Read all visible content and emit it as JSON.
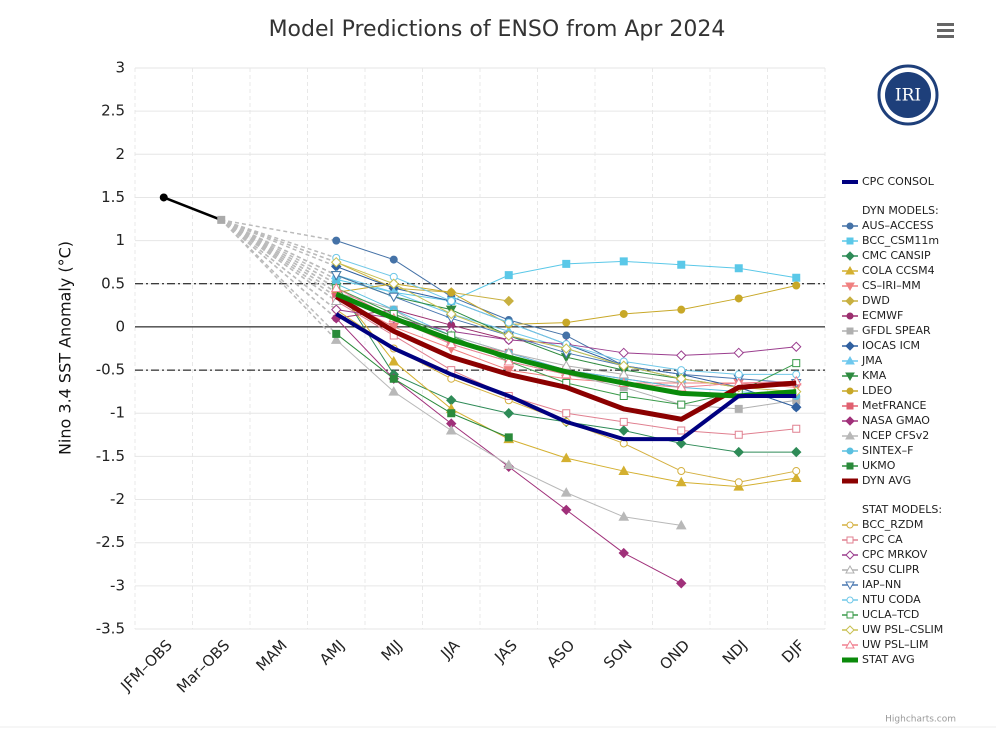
{
  "chart_data": {
    "type": "line",
    "title": "Model Predictions of ENSO from Apr 2024",
    "y_axis_title": "Nino 3.4 SST Anomaly (°C)",
    "credit": "Highcharts.com",
    "logo_text": "IRI",
    "categories": [
      "JFM–OBS",
      "Mar–OBS",
      "MAM",
      "AMJ",
      "MJJ",
      "JJA",
      "JAS",
      "ASO",
      "SON",
      "OND",
      "NDJ",
      "DJF"
    ],
    "ylim": [
      -3.5,
      3
    ],
    "yticks": [
      3,
      2.5,
      2,
      1.5,
      1,
      0.5,
      0,
      -0.5,
      -1,
      -1.5,
      -2,
      -2.5,
      -3,
      -3.5
    ],
    "grid": true,
    "plot_lines": [
      {
        "value": 0.5,
        "dash": "dashdot"
      },
      {
        "value": 0,
        "dash": "solid"
      },
      {
        "value": -0.5,
        "dash": "dashdot"
      }
    ],
    "observed": {
      "color": "#000000",
      "values": [
        1.5,
        1.24,
        null,
        null,
        null,
        null,
        null,
        null,
        null,
        null,
        null,
        null
      ]
    },
    "series": [
      {
        "name": "CPC CONSOL",
        "color": "#000080",
        "line_width": 4,
        "values": [
          null,
          null,
          null,
          0.15,
          -0.25,
          -0.55,
          -0.8,
          -1.1,
          -1.3,
          -1.3,
          -0.8,
          -0.8
        ]
      }
    ],
    "dyn_models": {
      "heading": "DYN MODELS:",
      "series": [
        {
          "name": "AUS–ACCESS",
          "color": "#4572a7",
          "marker": "circle",
          "values": [
            null,
            null,
            null,
            1.0,
            0.78,
            0.35,
            0.08,
            -0.1,
            -0.45,
            -0.6,
            -0.7,
            -0.93
          ]
        },
        {
          "name": "BCC_CSM11m",
          "color": "#5bc8e8",
          "marker": "square",
          "values": [
            null,
            null,
            null,
            0.55,
            0.4,
            0.3,
            0.6,
            0.73,
            0.76,
            0.72,
            0.68,
            0.57
          ]
        },
        {
          "name": "CMC CANSIP",
          "color": "#2e8b57",
          "marker": "diamond",
          "values": [
            null,
            null,
            null,
            0.5,
            -0.55,
            -0.85,
            -1.0,
            -1.1,
            -1.2,
            -1.35,
            -1.45,
            -1.45
          ]
        },
        {
          "name": "COLA CCSM4",
          "color": "#d4b030",
          "marker": "triangle",
          "values": [
            null,
            null,
            null,
            0.45,
            -0.4,
            -0.95,
            -1.3,
            -1.52,
            -1.67,
            -1.8,
            -1.85,
            -1.75
          ]
        },
        {
          "name": "CS–IRI–MM",
          "color": "#f08080",
          "marker": "triangle-down",
          "values": [
            null,
            null,
            null,
            0.35,
            0.0,
            -0.25,
            -0.5,
            -0.6,
            -0.65,
            -0.65,
            -0.65,
            -0.7
          ]
        },
        {
          "name": "DWD",
          "color": "#c8b040",
          "marker": "diamond",
          "values": [
            null,
            null,
            null,
            0.75,
            0.45,
            0.4,
            0.3,
            null,
            null,
            null,
            null,
            null
          ]
        },
        {
          "name": "ECMWF",
          "color": "#9b2e6e",
          "marker": "circle",
          "values": [
            null,
            null,
            null,
            0.1,
            0.2,
            0.02,
            -0.15,
            null,
            null,
            null,
            null,
            null
          ]
        },
        {
          "name": "GFDL SPEAR",
          "color": "#b0b0b0",
          "marker": "square",
          "values": [
            null,
            null,
            null,
            0.4,
            0.2,
            -0.2,
            -0.4,
            -0.55,
            -0.7,
            -0.9,
            -0.95,
            -0.85
          ]
        },
        {
          "name": "IOCAS ICM",
          "color": "#3060a0",
          "marker": "diamond",
          "values": [
            null,
            null,
            null,
            0.7,
            0.45,
            0.3,
            0.05,
            -0.2,
            -0.45,
            -0.55,
            -0.7,
            -0.93
          ]
        },
        {
          "name": "JMA",
          "color": "#6ec8ee",
          "marker": "triangle",
          "values": [
            null,
            null,
            null,
            0.6,
            0.4,
            0.15,
            -0.05,
            -0.25,
            -0.45,
            -0.6,
            null,
            null
          ]
        },
        {
          "name": "KMA",
          "color": "#2e8b40",
          "marker": "triangle-down",
          "values": [
            null,
            null,
            null,
            0.6,
            0.35,
            0.2,
            -0.1,
            -0.35,
            -0.5,
            -0.6,
            null,
            null
          ]
        },
        {
          "name": "LDEO",
          "color": "#c8a828",
          "marker": "circle",
          "values": [
            null,
            null,
            null,
            0.4,
            0.5,
            0.4,
            0.03,
            0.05,
            0.15,
            0.2,
            0.33,
            0.48
          ]
        },
        {
          "name": "MetFRANCE",
          "color": "#e06070",
          "marker": "square",
          "values": [
            null,
            null,
            null,
            0.35,
            0.1,
            -0.15,
            -0.3,
            -0.5,
            -0.6,
            -0.7,
            null,
            null
          ]
        },
        {
          "name": "NASA GMAO",
          "color": "#a0307a",
          "marker": "diamond",
          "values": [
            null,
            null,
            null,
            0.1,
            -0.6,
            -1.12,
            -1.62,
            -2.12,
            -2.62,
            -2.97,
            null,
            null
          ]
        },
        {
          "name": "NCEP CFSv2",
          "color": "#b8b8b8",
          "marker": "triangle",
          "values": [
            null,
            null,
            null,
            -0.15,
            -0.75,
            -1.2,
            -1.6,
            -1.92,
            -2.2,
            -2.3,
            null,
            null
          ]
        },
        {
          "name": "SINTEX–F",
          "color": "#5ac0e0",
          "marker": "circle",
          "values": [
            null,
            null,
            null,
            0.5,
            0.2,
            -0.1,
            -0.3,
            -0.5,
            -0.6,
            -0.7,
            -0.75,
            -0.8
          ]
        },
        {
          "name": "UKMO",
          "color": "#2a8a3a",
          "marker": "square",
          "values": [
            null,
            null,
            null,
            -0.08,
            -0.6,
            -1.0,
            -1.28,
            null,
            null,
            null,
            null,
            null
          ]
        },
        {
          "name": "DYN AVG",
          "color": "#8b0000",
          "line_width": 5,
          "values": [
            null,
            null,
            null,
            0.35,
            -0.05,
            -0.35,
            -0.55,
            -0.7,
            -0.95,
            -1.07,
            -0.7,
            -0.65
          ]
        }
      ]
    },
    "stat_models": {
      "heading": "STAT MODELS:",
      "series": [
        {
          "name": "BCC_RZDM",
          "color": "#d4b040",
          "marker": "circle",
          "marker_fill": false,
          "values": [
            null,
            null,
            null,
            0.2,
            -0.25,
            -0.6,
            -0.85,
            -1.1,
            -1.35,
            -1.67,
            -1.8,
            -1.67
          ]
        },
        {
          "name": "CPC CA",
          "color": "#e08090",
          "marker": "square",
          "marker_fill": false,
          "values": [
            null,
            null,
            null,
            0.3,
            -0.1,
            -0.5,
            -0.8,
            -1.0,
            -1.1,
            -1.2,
            -1.25,
            -1.18
          ]
        },
        {
          "name": "CPC MRKOV",
          "color": "#9b3e8e",
          "marker": "diamond",
          "marker_fill": false,
          "values": [
            null,
            null,
            null,
            0.2,
            0.1,
            -0.05,
            -0.15,
            -0.2,
            -0.3,
            -0.33,
            -0.3,
            -0.23
          ]
        },
        {
          "name": "CSU CLIPR",
          "color": "#b0b0b0",
          "marker": "triangle",
          "marker_fill": false,
          "values": [
            null,
            null,
            null,
            0.3,
            0.15,
            -0.1,
            -0.3,
            -0.45,
            -0.55,
            -0.65,
            null,
            null
          ]
        },
        {
          "name": "IAP–NN",
          "color": "#4a78b0",
          "marker": "triangle-down",
          "marker_fill": false,
          "values": [
            null,
            null,
            null,
            0.6,
            0.35,
            0.1,
            -0.1,
            -0.3,
            -0.45,
            -0.55,
            -0.6,
            -0.65
          ]
        },
        {
          "name": "NTU CODA",
          "color": "#70c8e8",
          "marker": "circle",
          "marker_fill": false,
          "values": [
            null,
            null,
            null,
            0.8,
            0.58,
            0.3,
            0.05,
            -0.2,
            -0.4,
            -0.5,
            -0.55,
            -0.55
          ]
        },
        {
          "name": "UCLA–TCD",
          "color": "#3a9a4a",
          "marker": "square",
          "marker_fill": false,
          "values": [
            null,
            null,
            null,
            0.45,
            0.15,
            -0.1,
            -0.4,
            -0.65,
            -0.8,
            -0.9,
            -0.75,
            -0.42
          ]
        },
        {
          "name": "UW PSL–CSLIM",
          "color": "#c8c050",
          "marker": "diamond",
          "marker_fill": false,
          "values": [
            null,
            null,
            null,
            0.75,
            0.5,
            0.15,
            -0.1,
            -0.25,
            -0.45,
            -0.6,
            -0.7,
            -0.75
          ]
        },
        {
          "name": "UW PSL–LIM",
          "color": "#f08090",
          "marker": "triangle",
          "marker_fill": false,
          "values": [
            null,
            null,
            null,
            0.45,
            0.1,
            -0.2,
            -0.4,
            -0.55,
            -0.65,
            -0.7,
            -0.65,
            -0.63
          ]
        },
        {
          "name": "STAT AVG",
          "color": "#0a8a0a",
          "line_width": 5,
          "values": [
            null,
            null,
            null,
            0.38,
            0.1,
            -0.15,
            -0.35,
            -0.52,
            -0.65,
            -0.77,
            -0.8,
            -0.75
          ]
        }
      ]
    }
  }
}
